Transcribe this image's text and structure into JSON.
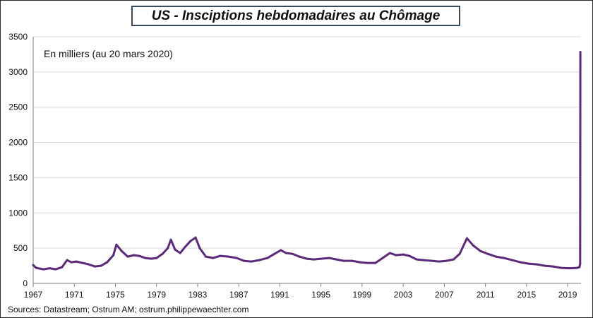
{
  "title": "US - Insciptions hebdomadaires au Chômage",
  "annotation": "En milliers (au 20 mars 2020)",
  "source": "Sources: Datastream;  Ostrum AM; ostrum.philippewaechter.com",
  "colors": {
    "series": "#5b2a7a",
    "grid": "#d9d9d9",
    "axis": "#7f7f7f",
    "frame": "#2b2b2b",
    "title_border": "#3a4a5c"
  },
  "chart_data": {
    "type": "line",
    "title": "US - Insciptions hebdomadaires au Chômage",
    "xlabel": "",
    "ylabel": "",
    "xlim": [
      1967,
      2020.3
    ],
    "ylim": [
      0,
      3500
    ],
    "x_ticks": [
      "1967",
      "1971",
      "1975",
      "1979",
      "1983",
      "1987",
      "1991",
      "1995",
      "1999",
      "2003",
      "2007",
      "2011",
      "2015",
      "2019"
    ],
    "y_ticks": [
      "0",
      "500",
      "1000",
      "1500",
      "2000",
      "2500",
      "3000",
      "3500"
    ],
    "grid": "horizontal",
    "series": [
      {
        "points": [
          [
            1967.0,
            260
          ],
          [
            1967.3,
            220
          ],
          [
            1968.0,
            200
          ],
          [
            1968.6,
            215
          ],
          [
            1969.2,
            200
          ],
          [
            1969.8,
            230
          ],
          [
            1970.3,
            330
          ],
          [
            1970.7,
            300
          ],
          [
            1971.2,
            310
          ],
          [
            1971.8,
            290
          ],
          [
            1972.4,
            270
          ],
          [
            1973.0,
            240
          ],
          [
            1973.6,
            250
          ],
          [
            1974.2,
            300
          ],
          [
            1974.8,
            400
          ],
          [
            1975.1,
            550
          ],
          [
            1975.6,
            460
          ],
          [
            1976.2,
            380
          ],
          [
            1976.8,
            400
          ],
          [
            1977.3,
            390
          ],
          [
            1977.9,
            360
          ],
          [
            1978.5,
            350
          ],
          [
            1979.0,
            360
          ],
          [
            1979.6,
            420
          ],
          [
            1980.1,
            500
          ],
          [
            1980.4,
            620
          ],
          [
            1980.8,
            480
          ],
          [
            1981.3,
            430
          ],
          [
            1981.8,
            520
          ],
          [
            1982.3,
            600
          ],
          [
            1982.8,
            650
          ],
          [
            1983.2,
            500
          ],
          [
            1983.8,
            380
          ],
          [
            1984.5,
            360
          ],
          [
            1985.2,
            390
          ],
          [
            1986.0,
            380
          ],
          [
            1986.8,
            360
          ],
          [
            1987.5,
            320
          ],
          [
            1988.2,
            310
          ],
          [
            1989.0,
            330
          ],
          [
            1989.8,
            360
          ],
          [
            1990.5,
            420
          ],
          [
            1991.1,
            470
          ],
          [
            1991.6,
            430
          ],
          [
            1992.2,
            420
          ],
          [
            1992.9,
            380
          ],
          [
            1993.6,
            350
          ],
          [
            1994.3,
            340
          ],
          [
            1995.0,
            350
          ],
          [
            1995.8,
            360
          ],
          [
            1996.5,
            340
          ],
          [
            1997.2,
            320
          ],
          [
            1998.0,
            320
          ],
          [
            1998.8,
            300
          ],
          [
            1999.5,
            290
          ],
          [
            2000.3,
            290
          ],
          [
            2001.0,
            360
          ],
          [
            2001.7,
            430
          ],
          [
            2002.3,
            400
          ],
          [
            2003.0,
            410
          ],
          [
            2003.6,
            390
          ],
          [
            2004.3,
            340
          ],
          [
            2005.0,
            330
          ],
          [
            2005.8,
            320
          ],
          [
            2006.5,
            310
          ],
          [
            2007.2,
            320
          ],
          [
            2007.9,
            340
          ],
          [
            2008.5,
            420
          ],
          [
            2009.2,
            640
          ],
          [
            2009.8,
            540
          ],
          [
            2010.5,
            460
          ],
          [
            2011.2,
            420
          ],
          [
            2012.0,
            380
          ],
          [
            2012.8,
            360
          ],
          [
            2013.6,
            330
          ],
          [
            2014.4,
            300
          ],
          [
            2015.2,
            280
          ],
          [
            2016.0,
            270
          ],
          [
            2016.8,
            250
          ],
          [
            2017.6,
            240
          ],
          [
            2018.4,
            220
          ],
          [
            2019.2,
            215
          ],
          [
            2019.9,
            220
          ],
          [
            2020.15,
            230
          ],
          [
            2020.22,
            281
          ],
          [
            2020.24,
            3283
          ]
        ]
      }
    ]
  }
}
